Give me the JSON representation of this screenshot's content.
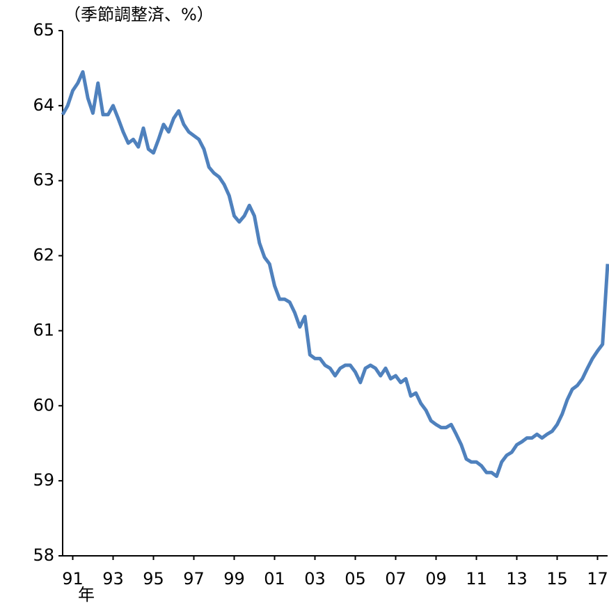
{
  "chart_data": {
    "type": "line",
    "unit_label": "（季節調整済、%）",
    "x_unit": "年",
    "x": [
      1991.0,
      1991.25,
      1991.5,
      1991.75,
      1992.0,
      1992.25,
      1992.5,
      1992.75,
      1993.0,
      1993.25,
      1993.5,
      1993.75,
      1994.0,
      1994.25,
      1994.5,
      1994.75,
      1995.0,
      1995.25,
      1995.5,
      1995.75,
      1996.0,
      1996.25,
      1996.5,
      1996.75,
      1997.0,
      1997.25,
      1997.5,
      1997.75,
      1998.0,
      1998.25,
      1998.5,
      1998.75,
      1999.0,
      1999.25,
      1999.5,
      1999.75,
      2000.0,
      2000.25,
      2000.5,
      2000.75,
      2001.0,
      2001.25,
      2001.5,
      2001.75,
      2002.0,
      2002.25,
      2002.5,
      2002.75,
      2003.0,
      2003.25,
      2003.5,
      2003.75,
      2004.0,
      2004.25,
      2004.5,
      2004.75,
      2005.0,
      2005.25,
      2005.5,
      2005.75,
      2006.0,
      2006.25,
      2006.5,
      2006.75,
      2007.0,
      2007.25,
      2007.5,
      2007.75,
      2008.0,
      2008.25,
      2008.5,
      2008.75,
      2009.0,
      2009.25,
      2009.5,
      2009.75,
      2010.0,
      2010.25,
      2010.5,
      2010.75,
      2011.0,
      2011.25,
      2011.5,
      2011.75,
      2012.0,
      2012.25,
      2012.5,
      2012.75,
      2013.0,
      2013.25,
      2013.5,
      2013.75,
      2014.0,
      2014.25,
      2014.5,
      2014.75,
      2015.0,
      2015.25,
      2015.5,
      2015.75,
      2016.0,
      2016.25,
      2016.5,
      2016.75,
      2017.0,
      2017.25,
      2017.5,
      2017.75,
      2018.0
    ],
    "series": [
      {
        "color": "#4f81bd",
        "values": [
          63.88,
          64.0,
          64.2,
          64.3,
          64.45,
          64.1,
          63.9,
          64.3,
          63.88,
          63.88,
          64.0,
          63.83,
          63.65,
          63.5,
          63.55,
          63.45,
          63.7,
          63.42,
          63.37,
          63.55,
          63.75,
          63.65,
          63.83,
          63.93,
          63.75,
          63.65,
          63.6,
          63.55,
          63.42,
          63.18,
          63.1,
          63.05,
          62.95,
          62.8,
          62.53,
          62.45,
          62.53,
          62.67,
          62.53,
          62.17,
          61.98,
          61.89,
          61.6,
          61.42,
          61.42,
          61.38,
          61.24,
          61.05,
          61.19,
          60.68,
          60.63,
          60.63,
          60.54,
          60.5,
          60.4,
          60.5,
          60.54,
          60.54,
          60.45,
          60.31,
          60.5,
          60.54,
          60.5,
          60.4,
          60.5,
          60.36,
          60.4,
          60.31,
          60.36,
          60.13,
          60.17,
          60.03,
          59.94,
          59.8,
          59.75,
          59.71,
          59.71,
          59.75,
          59.62,
          59.48,
          59.29,
          59.25,
          59.25,
          59.2,
          59.11,
          59.11,
          59.06,
          59.25,
          59.34,
          59.38,
          59.48,
          59.52,
          59.57,
          59.57,
          59.62,
          59.57,
          59.62,
          59.66,
          59.75,
          59.89,
          60.08,
          60.22,
          60.27,
          60.36,
          60.5,
          60.63,
          60.73,
          60.82,
          61.89
        ]
      }
    ],
    "xlim": [
      1991,
      2018
    ],
    "xticks": [
      {
        "value": 1991.5,
        "label": "91"
      },
      {
        "value": 1993.5,
        "label": "93"
      },
      {
        "value": 1995.5,
        "label": "95"
      },
      {
        "value": 1997.5,
        "label": "97"
      },
      {
        "value": 1999.5,
        "label": "99"
      },
      {
        "value": 2001.5,
        "label": "01"
      },
      {
        "value": 2003.5,
        "label": "03"
      },
      {
        "value": 2005.5,
        "label": "05"
      },
      {
        "value": 2007.5,
        "label": "07"
      },
      {
        "value": 2009.5,
        "label": "09"
      },
      {
        "value": 2011.5,
        "label": "11"
      },
      {
        "value": 2013.5,
        "label": "13"
      },
      {
        "value": 2015.5,
        "label": "15"
      },
      {
        "value": 2017.5,
        "label": "17"
      }
    ],
    "ylim": [
      58,
      65
    ],
    "yticks": [
      58,
      59,
      60,
      61,
      62,
      63,
      64,
      65
    ],
    "grid": false
  }
}
